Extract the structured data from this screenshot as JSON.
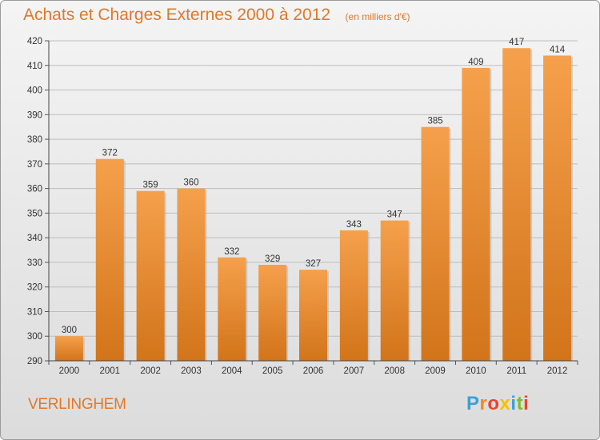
{
  "chart_data": {
    "type": "bar",
    "title": "Achats et Charges Externes 2000 à 2012",
    "subtitle": "(en milliers d'€)",
    "categories": [
      "2000",
      "2001",
      "2002",
      "2003",
      "2004",
      "2005",
      "2006",
      "2007",
      "2008",
      "2009",
      "2010",
      "2011",
      "2012"
    ],
    "values": [
      300,
      372,
      359,
      360,
      332,
      329,
      327,
      343,
      347,
      385,
      409,
      417,
      414
    ],
    "ylim": [
      290,
      420
    ],
    "yticks": [
      290,
      300,
      310,
      320,
      330,
      340,
      350,
      360,
      370,
      380,
      390,
      400,
      410,
      420
    ],
    "grid": true,
    "bar_color": "#f0923a"
  },
  "footer": {
    "commune": "VERLINGHEM",
    "brand": {
      "letters": [
        "P",
        "r",
        "o",
        "x",
        "i",
        "t",
        "i"
      ],
      "colors": [
        "#3aa0d8",
        "#f08a1c",
        "#e8452c",
        "#f2c200",
        "#3aa0d8",
        "#7cbf2a",
        "#e8452c"
      ]
    }
  }
}
